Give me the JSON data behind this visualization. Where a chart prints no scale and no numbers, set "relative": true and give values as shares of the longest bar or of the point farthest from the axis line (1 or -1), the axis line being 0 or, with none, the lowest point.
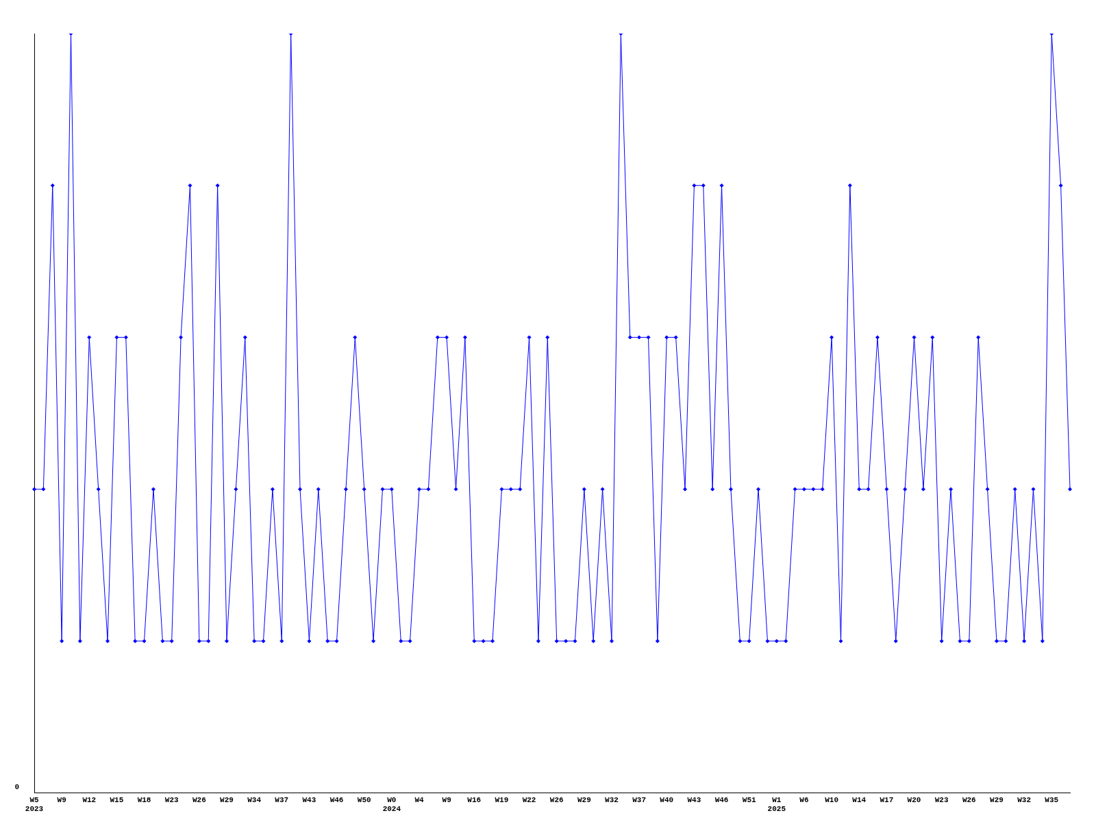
{
  "chart_data": {
    "type": "line",
    "relative": true,
    "color": "#0000ff",
    "marker": "diamond",
    "grid": false,
    "legend": false,
    "categories": [
      "W5\n2023",
      null,
      null,
      "W9",
      null,
      null,
      "W12",
      null,
      null,
      "W15",
      null,
      null,
      "W18",
      null,
      null,
      "W23",
      null,
      null,
      "W26",
      null,
      null,
      "W29",
      null,
      null,
      "W34",
      null,
      null,
      "W37",
      null,
      null,
      "W43",
      null,
      null,
      "W46",
      null,
      null,
      "W50",
      null,
      null,
      "W0\n2024",
      null,
      null,
      "W4",
      null,
      null,
      "W9",
      null,
      null,
      "W16",
      null,
      null,
      "W19",
      null,
      null,
      "W22",
      null,
      null,
      "W26",
      null,
      null,
      "W29",
      null,
      null,
      "W32",
      null,
      null,
      "W37",
      null,
      null,
      "W40",
      null,
      null,
      "W43",
      null,
      null,
      "W46",
      null,
      null,
      "W51",
      null,
      null,
      "W1\n2025",
      null,
      null,
      "W6",
      null,
      null,
      "W10",
      null,
      null,
      "W14",
      null,
      null,
      "W17",
      null,
      null,
      "W20",
      null,
      null,
      "W23",
      null,
      null,
      "W26",
      null,
      null,
      "W29",
      null,
      null,
      "W32",
      null,
      null,
      "W35",
      null,
      null
    ],
    "values": [
      0.4,
      0.4,
      0.8,
      0.2,
      1,
      0.2,
      0.6,
      0.4,
      0.2,
      0.6,
      0.6,
      0.2,
      0.2,
      0.4,
      0.2,
      0.2,
      0.6,
      0.8,
      0.2,
      0.2,
      0.8,
      0.2,
      0.4,
      0.6,
      0.2,
      0.2,
      0.4,
      0.2,
      1,
      0.4,
      0.2,
      0.4,
      0.2,
      0.2,
      0.4,
      0.6,
      0.4,
      0.2,
      0.4,
      0.4,
      0.2,
      0.2,
      0.4,
      0.4,
      0.6,
      0.6,
      0.4,
      0.6,
      0.2,
      0.2,
      0.2,
      0.4,
      0.4,
      0.4,
      0.6,
      0.2,
      0.6,
      0.2,
      0.2,
      0.2,
      0.4,
      0.2,
      0.4,
      0.2,
      1,
      0.6,
      0.6,
      0.6,
      0.2,
      0.6,
      0.6,
      0.4,
      0.8,
      0.8,
      0.4,
      0.8,
      0.4,
      0.2,
      0.2,
      0.4,
      0.2,
      0.2,
      0.2,
      0.4,
      0.4,
      0.4,
      0.4,
      0.6,
      0.2,
      0.8,
      0.4,
      0.4,
      0.6,
      0.4,
      0.2,
      0.4,
      0.6,
      0.4,
      0.6,
      0.2,
      0.4,
      0.2,
      0.2,
      0.6,
      0.4,
      0.2,
      0.2,
      0.4,
      0.2,
      0.4,
      0.2,
      1,
      0.8,
      0.4
    ],
    "annotations": [
      "0"
    ]
  }
}
